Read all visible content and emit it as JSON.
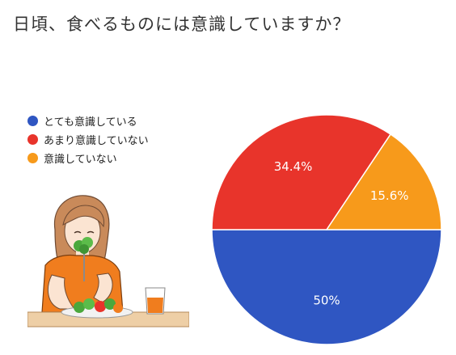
{
  "title": "日頃、食べるものには意識していますか？",
  "chart_data": {
    "type": "pie",
    "title": "",
    "slices": [
      {
        "name": "とても意識している",
        "value": 50,
        "label": "50%",
        "color": "#2f56c2"
      },
      {
        "name": "あまり意識していない",
        "value": 34.4,
        "label": "34.4%",
        "color": "#e8342b"
      },
      {
        "name": "意識していない",
        "value": 15.6,
        "label": "15.6%",
        "color": "#f79a1b"
      }
    ],
    "legend_position": "left"
  }
}
